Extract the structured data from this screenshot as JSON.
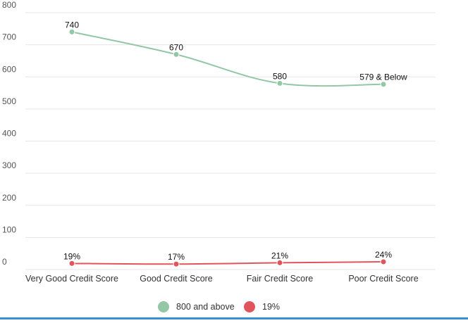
{
  "colors": {
    "series1": "#93c7a6",
    "series2": "#e0555b",
    "grid": "#e6e6e6",
    "bottom_rule": "#3a8fd0"
  },
  "chart_data": {
    "type": "line",
    "title": "",
    "xlabel": "",
    "ylabel": "",
    "categories": [
      "Very Good Credit Score",
      "Good Credit Score",
      "Fair Credit Score",
      "Poor Credit Score"
    ],
    "ylim": [
      0,
      800
    ],
    "yticks": [
      0,
      100,
      200,
      300,
      400,
      500,
      600,
      700,
      800
    ],
    "grid": true,
    "legend_position": "bottom",
    "series": [
      {
        "name": "800 and above",
        "values": [
          740,
          670,
          580,
          577
        ],
        "labels": [
          "740",
          "670",
          "580",
          "579 & Below"
        ]
      },
      {
        "name": "19%",
        "values": [
          19,
          17,
          21,
          24
        ],
        "labels": [
          "19%",
          "17%",
          "21%",
          "24%"
        ]
      }
    ]
  }
}
